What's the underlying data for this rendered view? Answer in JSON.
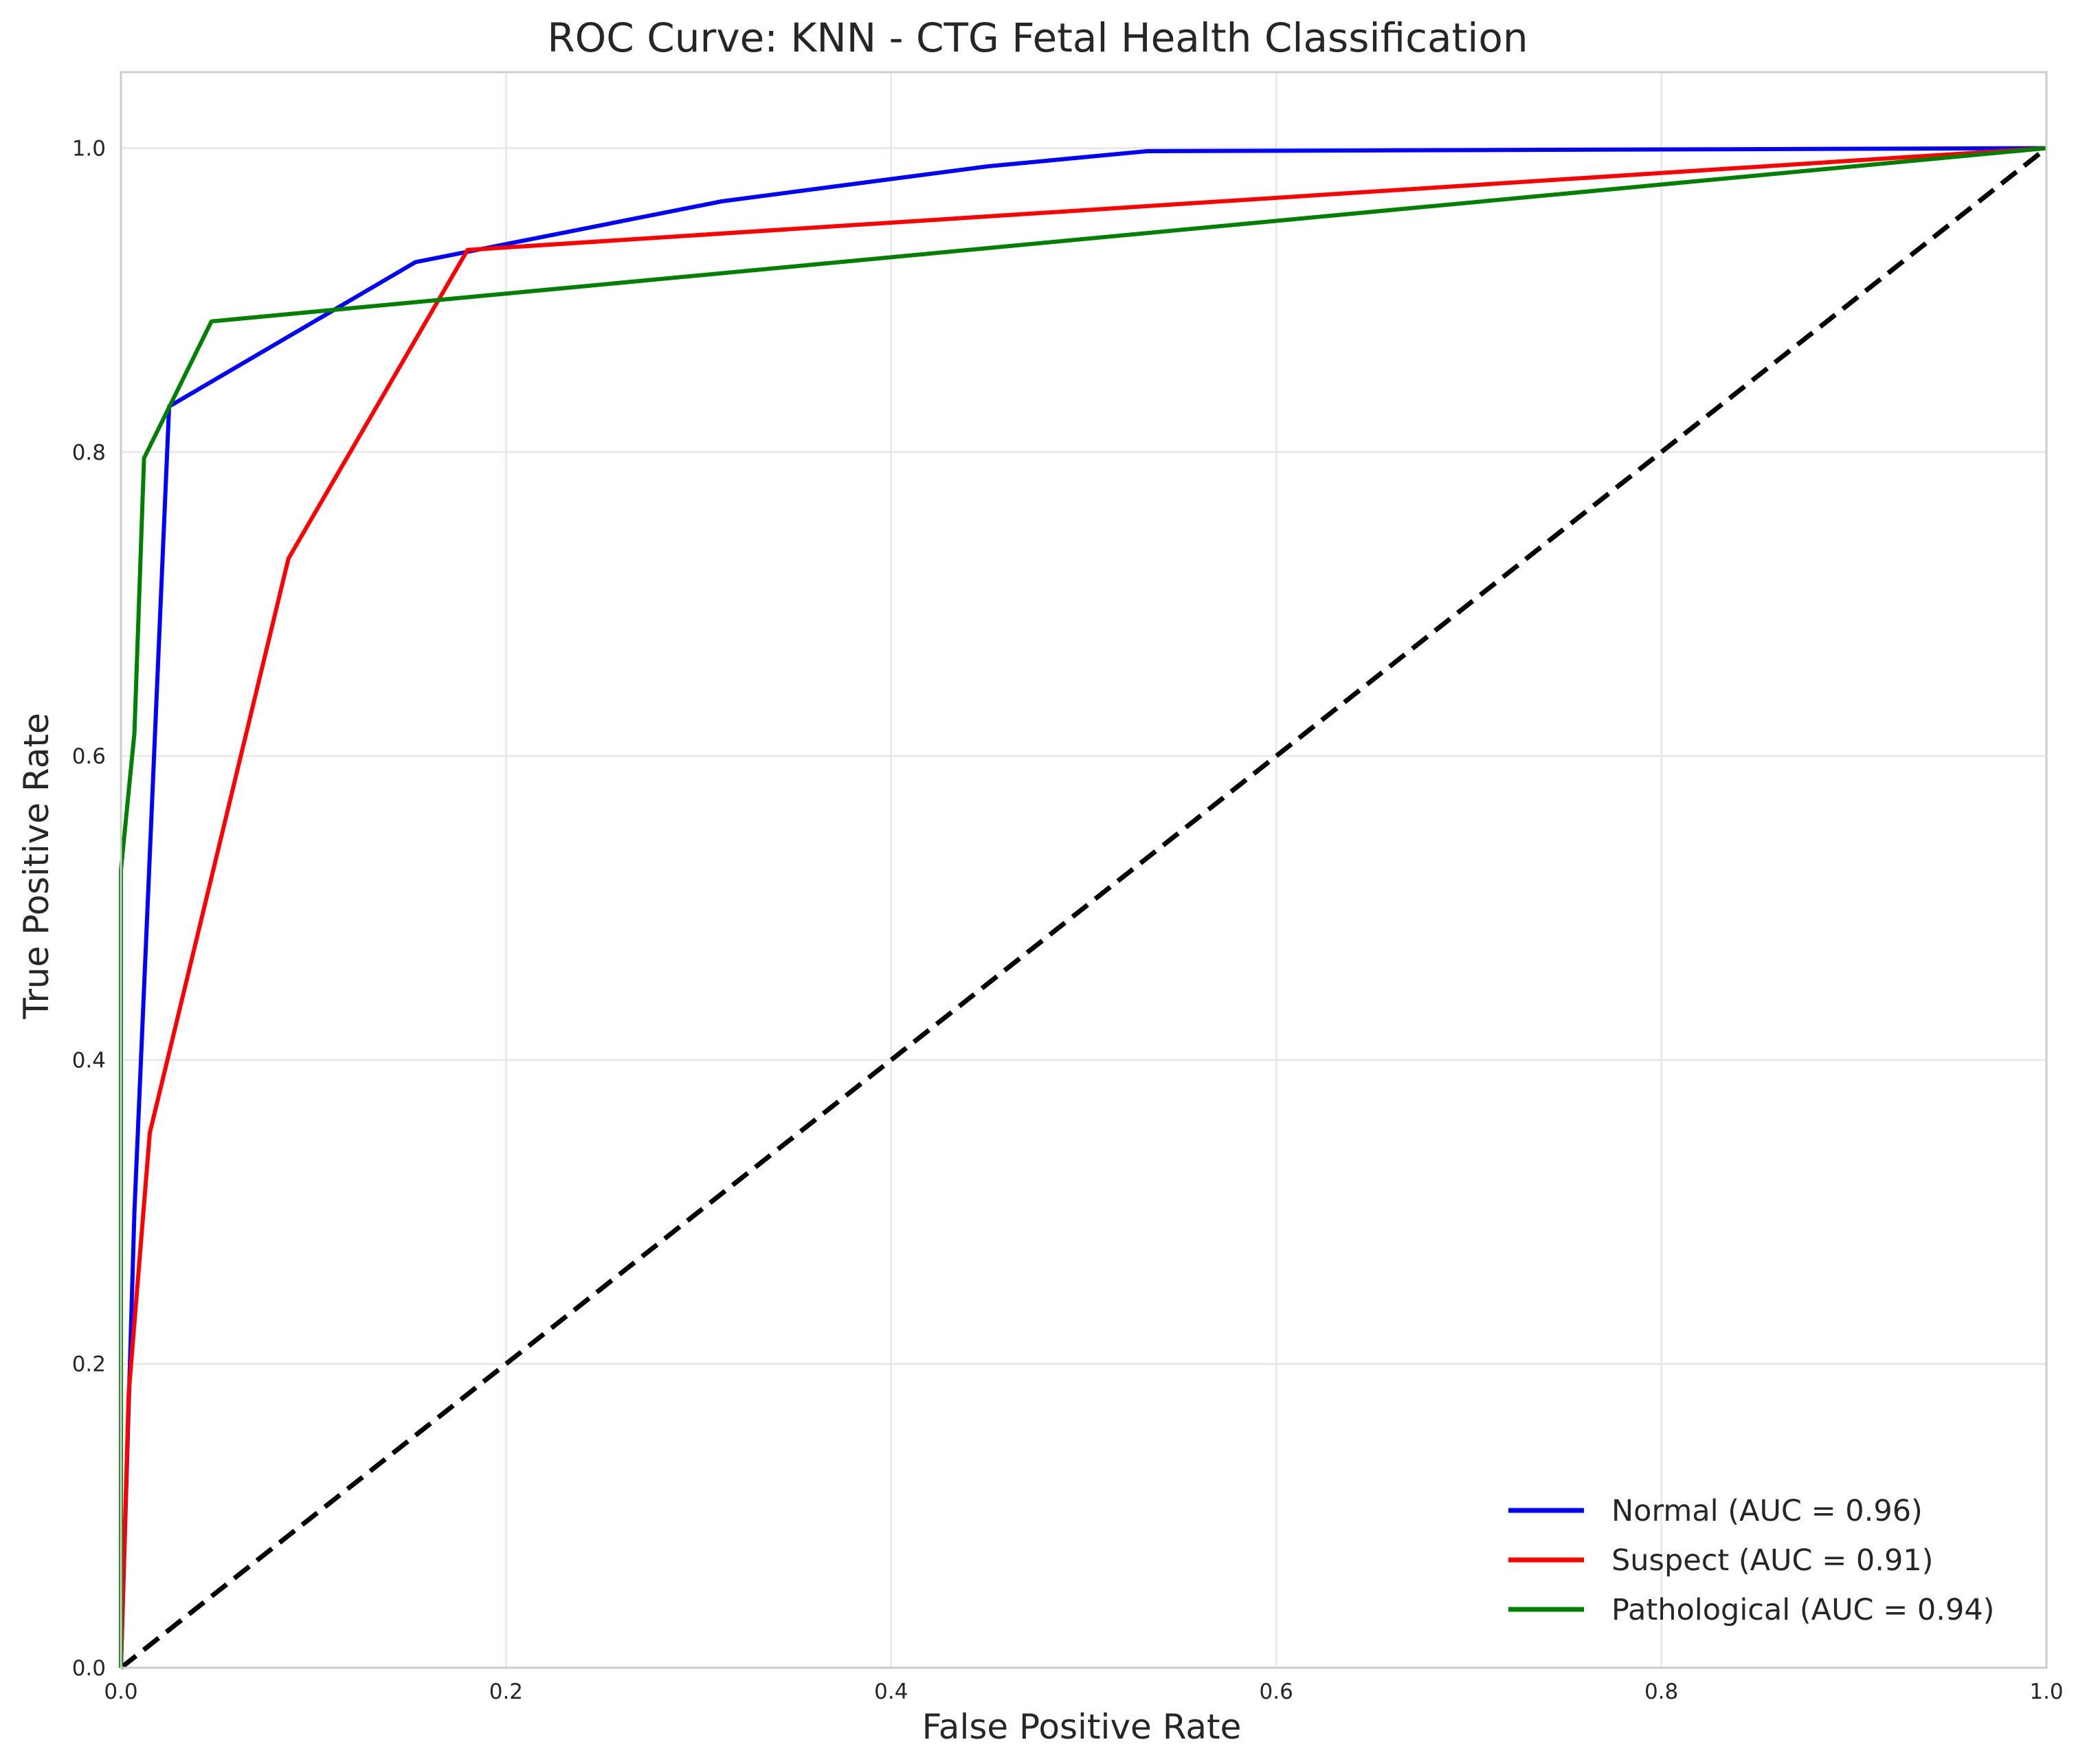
{
  "chart_data": {
    "type": "line",
    "title": "ROC Curve: KNN - CTG Fetal Health Classification",
    "xlabel": "False Positive Rate",
    "ylabel": "True Positive Rate",
    "xlim": [
      0.0,
      1.0
    ],
    "ylim": [
      0.0,
      1.05
    ],
    "xticks": [
      "0.0",
      "0.2",
      "0.4",
      "0.6",
      "0.8",
      "1.0"
    ],
    "yticks": [
      "0.0",
      "0.2",
      "0.4",
      "0.6",
      "0.8",
      "1.0"
    ],
    "grid": true,
    "legend_position": "lower right",
    "series": [
      {
        "name": "Normal (AUC = 0.96)",
        "color": "#0000ff",
        "x": [
          0.0,
          0.007,
          0.025,
          0.153,
          0.312,
          0.45,
          0.533,
          1.0
        ],
        "y": [
          0.0,
          0.3,
          0.83,
          0.925,
          0.965,
          0.988,
          0.998,
          1.0
        ]
      },
      {
        "name": "Suspect (AUC = 0.91)",
        "color": "#ff0000",
        "x": [
          0.0,
          0.004,
          0.015,
          0.087,
          0.18,
          1.0
        ],
        "y": [
          0.0,
          0.18,
          0.352,
          0.73,
          0.933,
          1.0
        ]
      },
      {
        "name": "Pathological (AUC = 0.94)",
        "color": "#008000",
        "x": [
          0.0,
          0.0,
          0.007,
          0.012,
          0.047,
          1.0
        ],
        "y": [
          0.0,
          0.525,
          0.615,
          0.796,
          0.886,
          1.0
        ]
      },
      {
        "name": "",
        "color": "#000000",
        "dashed": true,
        "x": [
          0.0,
          1.0
        ],
        "y": [
          0.0,
          1.0
        ]
      }
    ]
  }
}
